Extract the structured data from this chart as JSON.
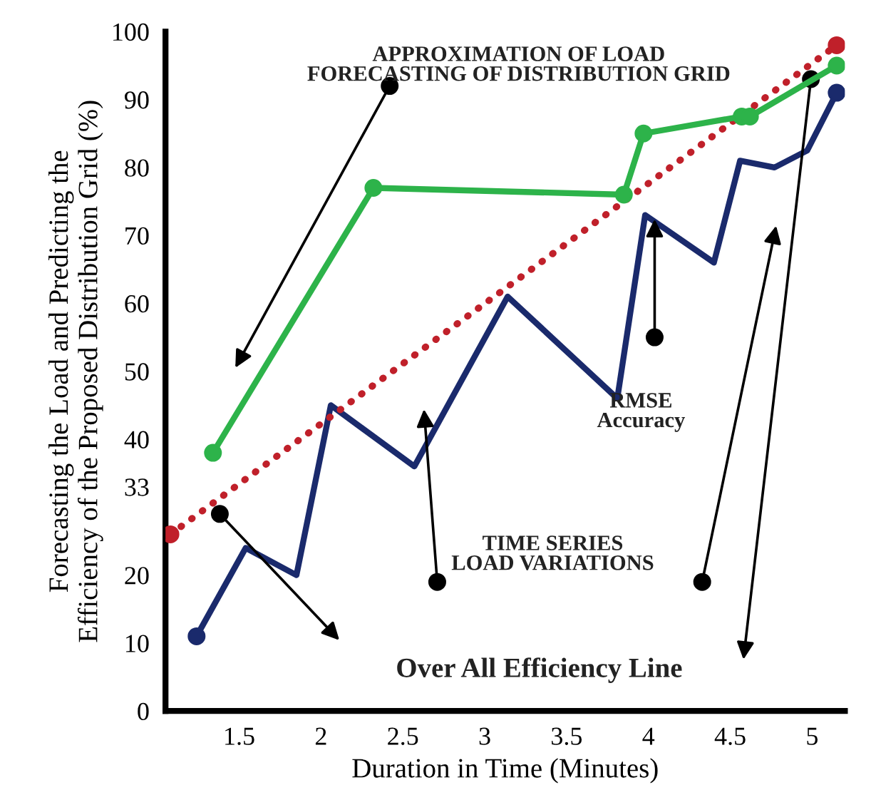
{
  "chart_data": {
    "type": "line",
    "xlabel": "Duration in Time (Minutes)",
    "ylabel": "Forecasting the Load and Predicting the\nEfficiency of the Proposed Distribution Grid (%)",
    "xlim": [
      1.05,
      5.2
    ],
    "xticks": [
      1.5,
      2,
      2.5,
      3,
      3.5,
      4,
      4.5,
      5
    ],
    "ylim": [
      0,
      100
    ],
    "yticks": [
      0,
      10,
      20,
      33,
      40,
      50,
      60,
      70,
      80,
      90,
      100
    ],
    "grid": false,
    "legend": false,
    "series": [
      {
        "color": "#2db34a",
        "marker": "circle",
        "line_style": "solid",
        "x": [
          1.34,
          2.32,
          3.85,
          3.97,
          4.57,
          4.62,
          5.15
        ],
        "values": [
          38,
          77,
          76,
          85,
          87.5,
          87.5,
          95
        ]
      },
      {
        "color": "#1a2a6c",
        "marker": "none",
        "line_style": "solid",
        "x": [
          1.24,
          1.54,
          1.85,
          2.06,
          2.57,
          3.14,
          3.81,
          3.98,
          4.4,
          4.56,
          4.77,
          4.97,
          5.15
        ],
        "values": [
          11,
          24,
          20,
          45,
          36,
          61,
          46,
          73,
          66,
          81,
          80,
          82.5,
          91
        ]
      },
      {
        "color": "#c0202a",
        "marker": "circle",
        "line_style": "dotted",
        "x": [
          1.08,
          5.15
        ],
        "values": [
          26,
          98
        ]
      }
    ],
    "annotations": [
      "APPROXIMATION OF LOAD\nFORECASTING OF DISTRIBUTION GRID",
      "RMSE\nAccuracy",
      "TIME SERIES\nLOAD VARIATIONS",
      "Over All Efficiency Line"
    ]
  }
}
